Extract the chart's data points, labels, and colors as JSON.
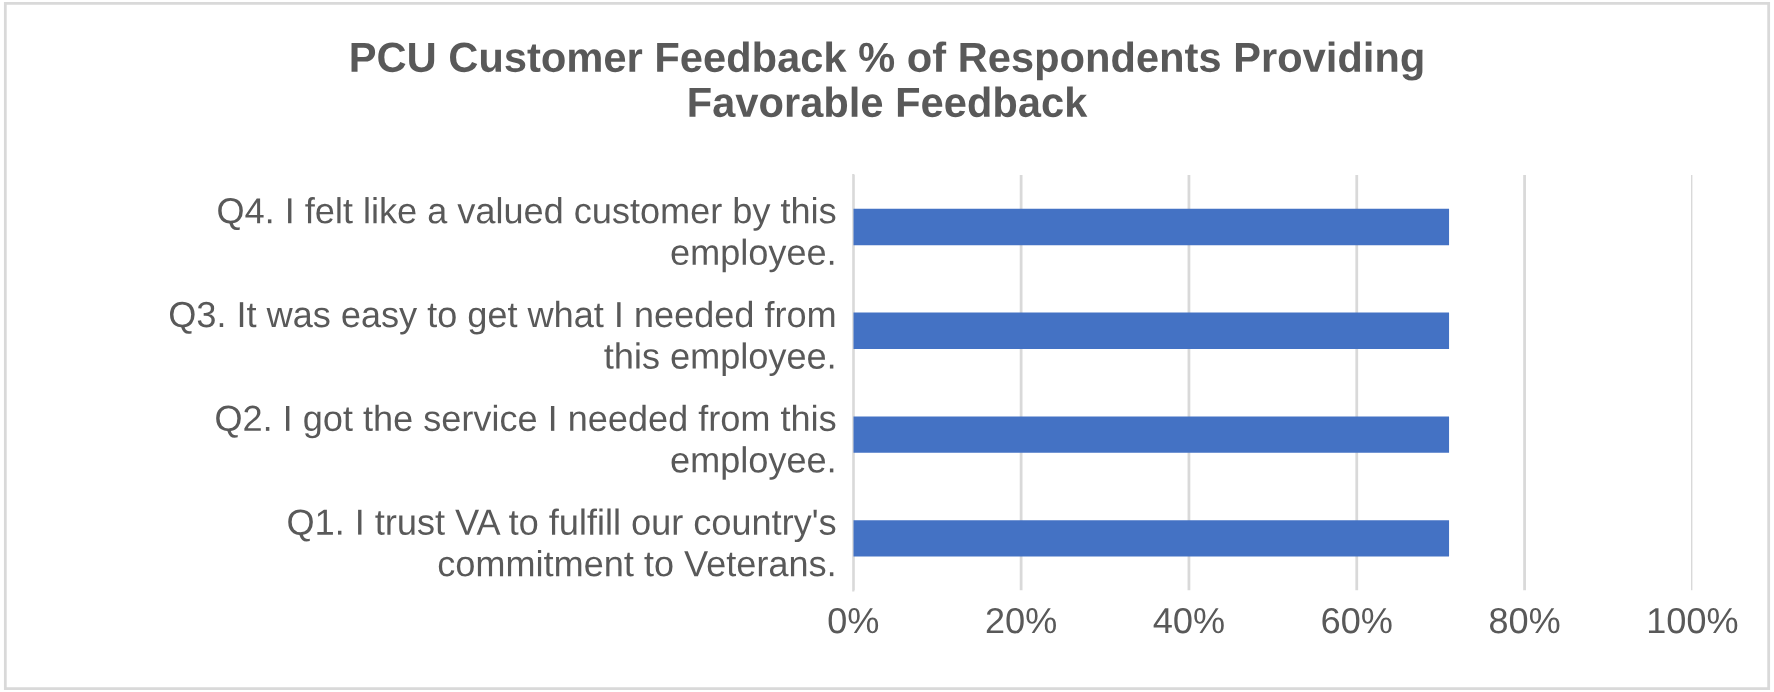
{
  "chart_data": {
    "type": "bar",
    "orientation": "horizontal",
    "title": "PCU Customer Feedback % of Respondents Providing\nFavorable Feedback",
    "categories": [
      "Q4. I felt like a valued customer by this\nemployee.",
      "Q3. It was easy to get what I needed from\nthis employee.",
      "Q2. I got the service I needed from this\nemployee.",
      "Q1. I trust VA to fulfill our country's\ncommitment to Veterans."
    ],
    "values": [
      71,
      71,
      71,
      71
    ],
    "color": "#4472c4",
    "xlim": [
      0,
      100
    ],
    "xticks": [
      {
        "value": 0,
        "label": "0%"
      },
      {
        "value": 20,
        "label": "20%"
      },
      {
        "value": 40,
        "label": "40%"
      },
      {
        "value": 60,
        "label": "60%"
      },
      {
        "value": 80,
        "label": "80%"
      },
      {
        "value": 100,
        "label": "100%"
      }
    ],
    "grid": "x",
    "legend": false
  }
}
